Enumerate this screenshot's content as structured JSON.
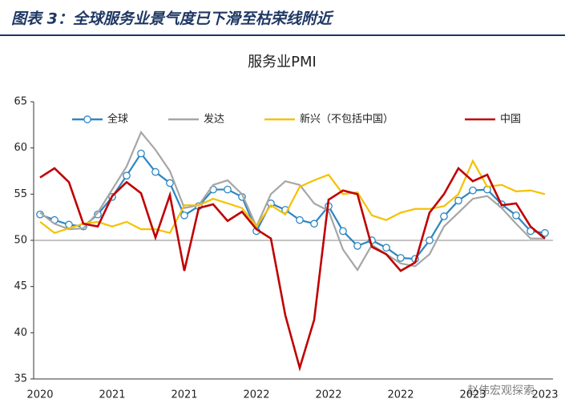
{
  "header": {
    "title": "图表 3：全球服务业景气度已下滑至枯荣线附近"
  },
  "watermark": "赵伟宏观探索",
  "chart_data": {
    "type": "line",
    "title": "服务业PMI",
    "categories": [
      "2020",
      null,
      null,
      null,
      null,
      "2021",
      null,
      null,
      null,
      null,
      "2021",
      null,
      null,
      null,
      null,
      "2022",
      null,
      null,
      null,
      null,
      "2022",
      null,
      null,
      null,
      null,
      "2022",
      null,
      null,
      null,
      null,
      "2023",
      null,
      null,
      null,
      null,
      "2023"
    ],
    "series": [
      {
        "name": "全球",
        "color": "#2e86c1",
        "marker": "circle",
        "values": [
          52.8,
          52.2,
          51.7,
          51.5,
          52.8,
          54.7,
          57.0,
          59.4,
          57.4,
          56.2,
          52.7,
          53.7,
          55.5,
          55.5,
          54.7,
          51.0,
          54.0,
          53.3,
          52.2,
          51.8,
          53.7,
          51.0,
          49.4,
          50.0,
          49.2,
          48.1,
          48.0,
          50.0,
          52.6,
          54.3,
          55.4,
          55.5,
          53.9,
          52.7,
          51.0,
          50.8
        ]
      },
      {
        "name": "发达",
        "color": "#a6a6a6",
        "values": [
          53,
          51.8,
          51.2,
          51.3,
          53,
          55.5,
          58,
          61.7,
          59.8,
          57.5,
          53.5,
          53.8,
          56,
          56.5,
          55,
          51.5,
          55,
          56.4,
          56,
          54,
          53.2,
          49,
          46.8,
          49.5,
          48.5,
          47.5,
          47.2,
          48.5,
          51.5,
          53,
          54.5,
          54.8,
          53.5,
          51.8,
          50.2,
          50.2
        ]
      },
      {
        "name": "新兴（不包括中国）",
        "color": "#f5c100",
        "values": [
          52,
          50.8,
          51.3,
          51.8,
          52,
          51.5,
          52,
          51.2,
          51.2,
          50.8,
          53.8,
          53.8,
          54.5,
          54,
          53.5,
          51.5,
          53.8,
          52.8,
          55.8,
          56.5,
          57.1,
          55,
          55.2,
          52.7,
          52.2,
          53,
          53.4,
          53.4,
          53.7,
          55,
          58.6,
          55.8,
          56,
          55.3,
          55.4,
          55
        ]
      },
      {
        "name": "中国",
        "color": "#c00000",
        "values": [
          56.8,
          57.8,
          56.3,
          51.8,
          51.5,
          54.8,
          56.3,
          55.1,
          50.3,
          54.9,
          46.7,
          53.5,
          53.9,
          52.1,
          53.1,
          51.2,
          50.2,
          41.9,
          36.2,
          41.4,
          54.4,
          55.4,
          55,
          49.3,
          48.5,
          46.7,
          47.6,
          53,
          55,
          57.8,
          56.4,
          57.1,
          53.8,
          54,
          51.5,
          50.2
        ]
      }
    ],
    "ylim": [
      35,
      65
    ],
    "yticks": [
      35,
      40,
      45,
      50,
      55,
      60,
      65
    ],
    "refline": 50,
    "legend": "top"
  }
}
